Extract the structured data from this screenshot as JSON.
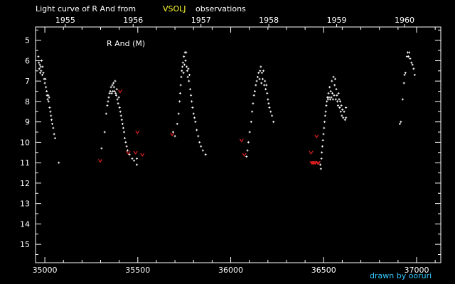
{
  "title": {
    "prefix": "Light curve of R And from",
    "source": "VSOLJ",
    "suffix": "observations"
  },
  "credit": "drawn by ooruri",
  "colors": {
    "background": "#000000",
    "foreground": "#ffffff",
    "highlight": "#ffff33",
    "credit": "#33ccff",
    "fainter_than": "#e02020"
  },
  "chart_data": {
    "type": "scatter",
    "title": "R And (M)",
    "xlabel": "",
    "ylabel": "",
    "xlim": [
      34950,
      37130
    ],
    "ylim": [
      15.9,
      4.35
    ],
    "y_inverted": true,
    "grid": false,
    "x_ticks": [
      35000,
      35500,
      36000,
      36500,
      37000
    ],
    "y_ticks": [
      5,
      6,
      7,
      8,
      9,
      10,
      11,
      12,
      13,
      14,
      15
    ],
    "year_ticks": [
      {
        "label": "1955",
        "x": 35110
      },
      {
        "label": "1956",
        "x": 35475
      },
      {
        "label": "1957",
        "x": 35840
      },
      {
        "label": "1958",
        "x": 36205
      },
      {
        "label": "1959",
        "x": 36570
      },
      {
        "label": "1960",
        "x": 36935
      }
    ],
    "series": [
      {
        "marker": "dot",
        "points": [
          [
            34965,
            5.8
          ],
          [
            34968,
            6.1
          ],
          [
            34970,
            6.4
          ],
          [
            34973,
            6.2
          ],
          [
            34975,
            6.6
          ],
          [
            34978,
            6.3
          ],
          [
            34980,
            6.5
          ],
          [
            34983,
            6.0
          ],
          [
            34986,
            6.7
          ],
          [
            34988,
            6.3
          ],
          [
            34992,
            6.6
          ],
          [
            34996,
            6.9
          ],
          [
            35000,
            7.1
          ],
          [
            35003,
            6.9
          ],
          [
            35006,
            7.3
          ],
          [
            35010,
            7.5
          ],
          [
            35012,
            7.7
          ],
          [
            35015,
            7.9
          ],
          [
            35018,
            7.7
          ],
          [
            35020,
            8.0
          ],
          [
            35023,
            7.8
          ],
          [
            35026,
            8.3
          ],
          [
            35030,
            8.5
          ],
          [
            35033,
            8.7
          ],
          [
            35036,
            8.9
          ],
          [
            35040,
            9.1
          ],
          [
            35045,
            9.3
          ],
          [
            35050,
            9.6
          ],
          [
            35055,
            9.8
          ],
          [
            35075,
            11.0
          ],
          [
            35305,
            10.3
          ],
          [
            35322,
            9.5
          ],
          [
            35330,
            8.6
          ],
          [
            35336,
            8.2
          ],
          [
            35340,
            8.0
          ],
          [
            35344,
            7.8
          ],
          [
            35348,
            7.6
          ],
          [
            35352,
            7.5
          ],
          [
            35356,
            7.3
          ],
          [
            35360,
            7.6
          ],
          [
            35363,
            7.2
          ],
          [
            35366,
            7.5
          ],
          [
            35369,
            7.1
          ],
          [
            35372,
            7.3
          ],
          [
            35375,
            7.5
          ],
          [
            35378,
            7.0
          ],
          [
            35381,
            7.6
          ],
          [
            35384,
            7.7
          ],
          [
            35387,
            7.4
          ],
          [
            35390,
            7.9
          ],
          [
            35394,
            8.1
          ],
          [
            35398,
            7.8
          ],
          [
            35402,
            8.3
          ],
          [
            35406,
            8.5
          ],
          [
            35410,
            8.7
          ],
          [
            35414,
            8.9
          ],
          [
            35418,
            9.1
          ],
          [
            35422,
            9.3
          ],
          [
            35426,
            9.5
          ],
          [
            35430,
            9.8
          ],
          [
            35435,
            10.0
          ],
          [
            35440,
            10.2
          ],
          [
            35445,
            10.4
          ],
          [
            35455,
            10.6
          ],
          [
            35470,
            10.8
          ],
          [
            35480,
            10.9
          ],
          [
            35495,
            11.1
          ],
          [
            35495,
            10.8
          ],
          [
            35690,
            9.5
          ],
          [
            35700,
            9.7
          ],
          [
            35712,
            9.1
          ],
          [
            35720,
            8.6
          ],
          [
            35725,
            8.0
          ],
          [
            35728,
            7.6
          ],
          [
            35731,
            7.2
          ],
          [
            35734,
            6.8
          ],
          [
            35737,
            6.5
          ],
          [
            35740,
            6.3
          ],
          [
            35743,
            6.1
          ],
          [
            35746,
            6.6
          ],
          [
            35748,
            5.8
          ],
          [
            35751,
            6.2
          ],
          [
            35754,
            5.6
          ],
          [
            35757,
            6.0
          ],
          [
            35760,
            5.6
          ],
          [
            35763,
            6.3
          ],
          [
            35766,
            6.5
          ],
          [
            35769,
            6.8
          ],
          [
            35772,
            6.4
          ],
          [
            35775,
            7.0
          ],
          [
            35778,
            6.7
          ],
          [
            35782,
            7.4
          ],
          [
            35786,
            7.7
          ],
          [
            35790,
            8.0
          ],
          [
            35795,
            8.3
          ],
          [
            35800,
            8.6
          ],
          [
            35805,
            8.8
          ],
          [
            35810,
            9.0
          ],
          [
            35817,
            9.4
          ],
          [
            35825,
            9.7
          ],
          [
            35832,
            10.0
          ],
          [
            35840,
            10.2
          ],
          [
            35850,
            10.4
          ],
          [
            35865,
            10.6
          ],
          [
            36085,
            10.7
          ],
          [
            36090,
            10.4
          ],
          [
            36095,
            10.0
          ],
          [
            36102,
            9.5
          ],
          [
            36110,
            9.0
          ],
          [
            36115,
            8.5
          ],
          [
            36120,
            8.1
          ],
          [
            36125,
            7.7
          ],
          [
            36130,
            7.5
          ],
          [
            36135,
            7.2
          ],
          [
            36140,
            7.0
          ],
          [
            36145,
            6.8
          ],
          [
            36150,
            6.6
          ],
          [
            36155,
            6.9
          ],
          [
            36158,
            6.5
          ],
          [
            36162,
            6.3
          ],
          [
            36165,
            7.1
          ],
          [
            36168,
            6.6
          ],
          [
            36172,
            6.9
          ],
          [
            36176,
            6.5
          ],
          [
            36180,
            7.2
          ],
          [
            36184,
            7.0
          ],
          [
            36188,
            7.4
          ],
          [
            36192,
            7.2
          ],
          [
            36196,
            7.6
          ],
          [
            36200,
            7.9
          ],
          [
            36204,
            8.1
          ],
          [
            36208,
            8.3
          ],
          [
            36215,
            8.5
          ],
          [
            36222,
            8.7
          ],
          [
            36230,
            9.0
          ],
          [
            36482,
            11.1
          ],
          [
            36485,
            11.3
          ],
          [
            36488,
            10.8
          ],
          [
            36490,
            10.5
          ],
          [
            36493,
            10.2
          ],
          [
            36496,
            9.9
          ],
          [
            36499,
            9.6
          ],
          [
            36502,
            9.3
          ],
          [
            36505,
            9.0
          ],
          [
            36508,
            8.7
          ],
          [
            36511,
            8.5
          ],
          [
            36514,
            8.2
          ],
          [
            36517,
            8.0
          ],
          [
            36520,
            7.8
          ],
          [
            36523,
            7.9
          ],
          [
            36526,
            7.6
          ],
          [
            36529,
            7.8
          ],
          [
            36532,
            7.3
          ],
          [
            36535,
            7.9
          ],
          [
            36538,
            7.5
          ],
          [
            36541,
            7.8
          ],
          [
            36544,
            7.0
          ],
          [
            36547,
            7.6
          ],
          [
            36550,
            7.9
          ],
          [
            36553,
            6.8
          ],
          [
            36556,
            7.7
          ],
          [
            36559,
            7.2
          ],
          [
            36562,
            6.9
          ],
          [
            36565,
            7.9
          ],
          [
            36568,
            7.4
          ],
          [
            36571,
            7.7
          ],
          [
            36574,
            8.0
          ],
          [
            36577,
            8.2
          ],
          [
            36580,
            7.6
          ],
          [
            36583,
            7.9
          ],
          [
            36586,
            8.3
          ],
          [
            36589,
            8.0
          ],
          [
            36592,
            8.5
          ],
          [
            36595,
            8.2
          ],
          [
            36598,
            8.7
          ],
          [
            36601,
            8.4
          ],
          [
            36605,
            8.8
          ],
          [
            36610,
            8.5
          ],
          [
            36615,
            8.9
          ],
          [
            36620,
            8.3
          ],
          [
            36620,
            8.8
          ],
          [
            36910,
            9.1
          ],
          [
            36915,
            9.0
          ],
          [
            36925,
            7.9
          ],
          [
            36932,
            7.1
          ],
          [
            36935,
            6.7
          ],
          [
            36940,
            6.6
          ],
          [
            36948,
            5.8
          ],
          [
            36952,
            5.6
          ],
          [
            36956,
            5.8
          ],
          [
            36960,
            5.6
          ],
          [
            36965,
            5.9
          ],
          [
            36972,
            6.1
          ],
          [
            36978,
            6.2
          ],
          [
            36984,
            6.4
          ],
          [
            36990,
            6.7
          ]
        ]
      },
      {
        "marker": "v",
        "points": [
          [
            35298,
            10.9
          ],
          [
            35405,
            7.5
          ],
          [
            35448,
            10.5
          ],
          [
            35488,
            10.5
          ],
          [
            35498,
            9.5
          ],
          [
            35525,
            10.6
          ],
          [
            35685,
            9.6
          ],
          [
            36058,
            9.9
          ],
          [
            36073,
            10.6
          ],
          [
            36432,
            10.5
          ],
          [
            36436,
            11.0
          ],
          [
            36442,
            11.0
          ],
          [
            36448,
            11.0
          ],
          [
            36455,
            11.0
          ],
          [
            36462,
            9.7
          ],
          [
            36468,
            11.0
          ],
          [
            36472,
            11.0
          ]
        ]
      }
    ]
  }
}
